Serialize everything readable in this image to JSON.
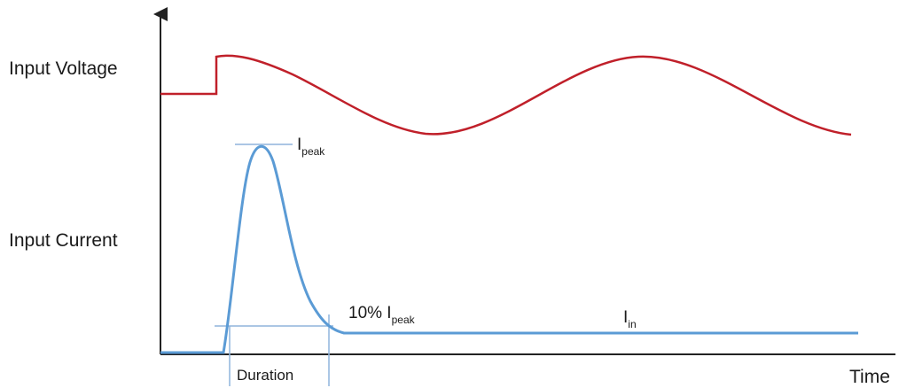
{
  "labels": {
    "input_voltage": "Input Voltage",
    "input_current": "Input Current",
    "time_axis": "Time",
    "duration": "Duration",
    "peak": {
      "symbol": "I",
      "subscript": "peak"
    },
    "ten_percent_peak": {
      "prefix": "10% I",
      "subscript": "peak"
    },
    "inrush_steady": {
      "symbol": "I",
      "subscript": "in"
    }
  },
  "colors": {
    "voltage_trace": "#c0202a",
    "current_trace": "#5b9bd5",
    "axis": "#222222",
    "guide_lines": "#8fb4dc"
  }
}
